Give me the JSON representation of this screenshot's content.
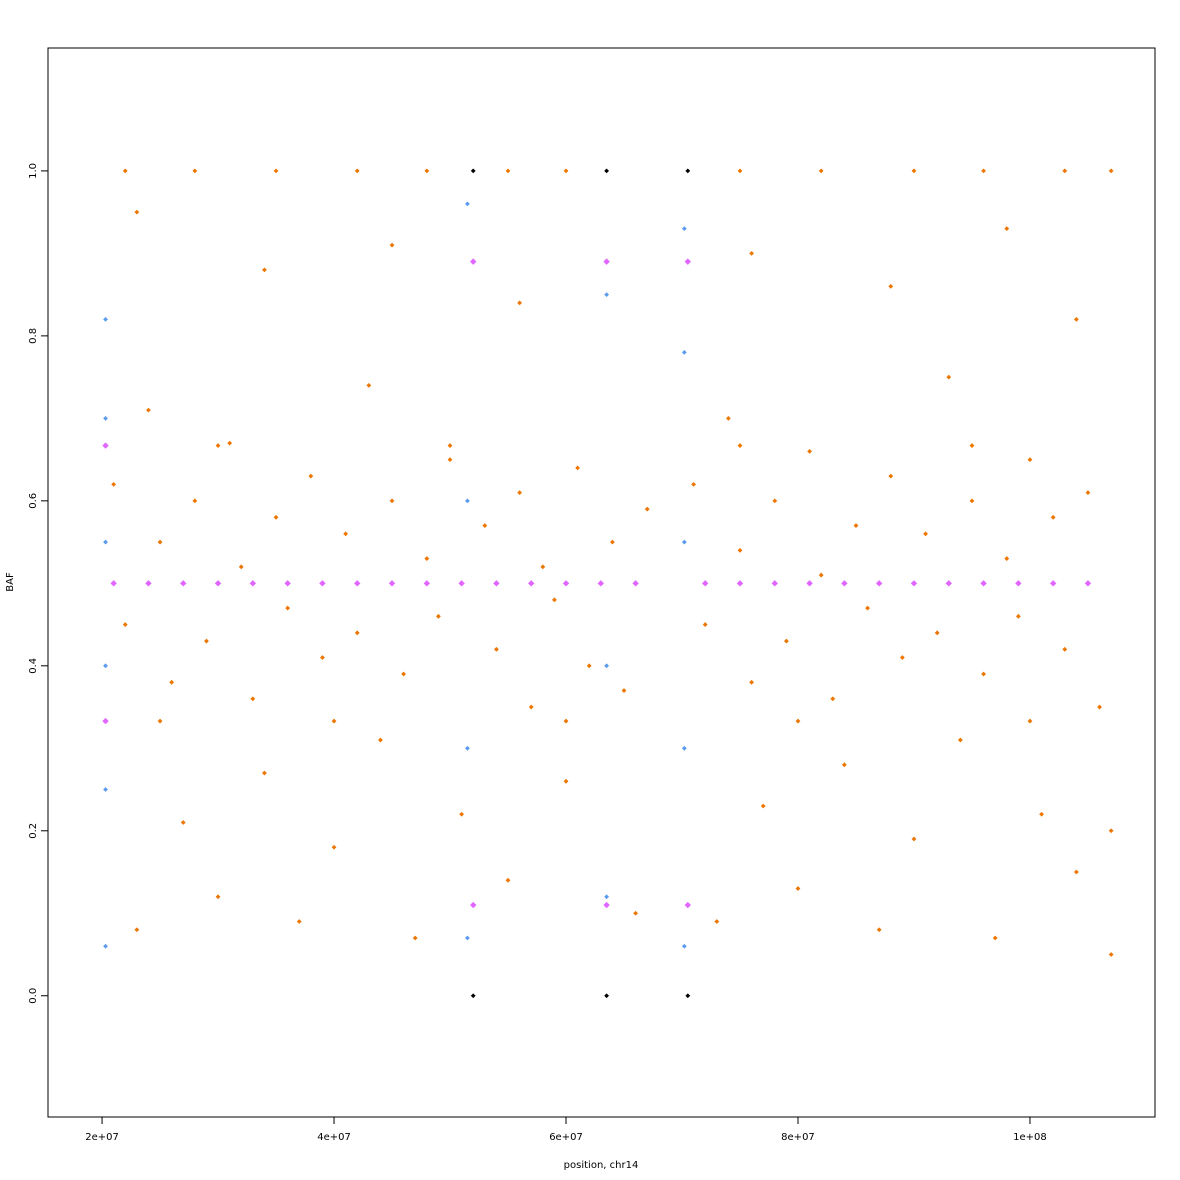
{
  "chart_data": {
    "type": "scatter",
    "xlabel": "position, chr14",
    "ylabel": "BAF",
    "xlim": [
      15340000,
      110780000
    ],
    "ylim": [
      -0.147,
      1.149
    ],
    "xticks": [
      {
        "value": 20000000.0,
        "label": "2e+07"
      },
      {
        "value": 40000000.0,
        "label": "4e+07"
      },
      {
        "value": 60000000.0,
        "label": "6e+07"
      },
      {
        "value": 80000000.0,
        "label": "8e+07"
      },
      {
        "value": 100000000.0,
        "label": "1e+08"
      }
    ],
    "yticks": [
      {
        "value": 0,
        "label": "0.0"
      },
      0.2,
      0.4,
      0.6,
      0.8,
      {
        "value": 1,
        "label": "1.0"
      }
    ],
    "series": [
      {
        "color": "#ee7600",
        "x": [
          21000000.0,
          22000000.0,
          23000000.0,
          24000000.0,
          25000000.0,
          26000000.0,
          27000000.0,
          28000000.0,
          29000000.0,
          30000000.0,
          31000000.0,
          32000000.0,
          33000000.0,
          34000000.0,
          35000000.0,
          36000000.0,
          37000000.0,
          38000000.0,
          39000000.0,
          40000000.0,
          41000000.0,
          42000000.0,
          43000000.0,
          44000000.0,
          45000000.0,
          46000000.0,
          47000000.0,
          48000000.0,
          49000000.0,
          50000000.0,
          51000000.0,
          53000000.0,
          54000000.0,
          55000000.0,
          56000000.0,
          57000000.0,
          58000000.0,
          59000000.0,
          60000000.0,
          61000000.0,
          62000000.0,
          64000000.0,
          65000000.0,
          66000000.0,
          67000000.0,
          71000000.0,
          72000000.0,
          73000000.0,
          74000000.0,
          75000000.0,
          76000000.0,
          77000000.0,
          78000000.0,
          79000000.0,
          80000000.0,
          81000000.0,
          82000000.0,
          83000000.0,
          84000000.0,
          85000000.0,
          86000000.0,
          87000000.0,
          88000000.0,
          89000000.0,
          90000000.0,
          91000000.0,
          92000000.0,
          93000000.0,
          94000000.0,
          95000000.0,
          96000000.0,
          97000000.0,
          98000000.0,
          99000000.0,
          100000000.0,
          101000000.0,
          102000000.0,
          103000000.0,
          104000000.0,
          105000000.0,
          106000000.0,
          107000000.0,
          107000000.0,
          23000000.0,
          34000000.0,
          45000000.0,
          56000000.0,
          76000000.0,
          88000000.0,
          98000000.0,
          104000000.0,
          22000000.0,
          28000000.0,
          35000000.0,
          42000000.0,
          48000000.0,
          55000000.0,
          60000000.0,
          75000000.0,
          82000000.0,
          90000000.0,
          96000000.0,
          103000000.0,
          107000000.0,
          25000000.0,
          40000000.0,
          60000000.0,
          80000000.0,
          100000000.0,
          30000000.0,
          50000000.0,
          75000000.0,
          95000000.0
        ],
        "y": [
          0.62,
          0.45,
          0.08,
          0.71,
          0.55,
          0.38,
          0.21,
          0.6,
          0.43,
          0.12,
          0.67,
          0.52,
          0.36,
          0.27,
          0.58,
          0.47,
          0.09,
          0.63,
          0.41,
          0.18,
          0.56,
          0.44,
          0.74,
          0.31,
          0.6,
          0.39,
          0.07,
          0.53,
          0.46,
          0.65,
          0.22,
          0.57,
          0.42,
          0.14,
          0.61,
          0.35,
          0.52,
          0.48,
          0.26,
          0.64,
          0.4,
          0.55,
          0.37,
          0.1,
          0.59,
          0.62,
          0.45,
          0.09,
          0.7,
          0.54,
          0.38,
          0.23,
          0.6,
          0.43,
          0.13,
          0.66,
          0.51,
          0.36,
          0.28,
          0.57,
          0.47,
          0.08,
          0.63,
          0.41,
          0.19,
          0.56,
          0.44,
          0.75,
          0.31,
          0.6,
          0.39,
          0.07,
          0.53,
          0.46,
          0.65,
          0.22,
          0.58,
          0.42,
          0.15,
          0.61,
          0.35,
          0.2,
          0.05,
          0.95,
          0.88,
          0.91,
          0.84,
          0.9,
          0.86,
          0.93,
          0.82,
          1,
          1,
          1,
          1,
          1,
          1,
          1,
          1,
          1,
          1,
          1,
          1,
          1,
          0.333,
          0.333,
          0.333,
          0.333,
          0.333,
          0.667,
          0.667,
          0.667,
          0.667
        ]
      },
      {
        "color": "#5b9bef",
        "x": [
          20300000.0,
          20300000.0,
          20300000.0,
          20300000.0,
          20300000.0,
          20300000.0,
          51500000.0,
          51500000.0,
          51500000.0,
          51500000.0,
          63500000.0,
          63500000.0,
          63500000.0,
          70200000.0,
          70200000.0,
          70200000.0,
          70200000.0,
          70200000.0
        ],
        "y": [
          0.82,
          0.7,
          0.55,
          0.4,
          0.25,
          0.06,
          0.96,
          0.6,
          0.3,
          0.07,
          0.85,
          0.4,
          0.12,
          0.93,
          0.78,
          0.55,
          0.3,
          0.06
        ]
      },
      {
        "color": "#e066ff",
        "x": [
          21000000.0,
          24000000.0,
          27000000.0,
          30000000.0,
          33000000.0,
          36000000.0,
          39000000.0,
          42000000.0,
          45000000.0,
          48000000.0,
          51000000.0,
          54000000.0,
          57000000.0,
          60000000.0,
          63000000.0,
          66000000.0,
          72000000.0,
          75000000.0,
          78000000.0,
          81000000.0,
          84000000.0,
          87000000.0,
          90000000.0,
          93000000.0,
          96000000.0,
          99000000.0,
          102000000.0,
          105000000.0,
          52000000.0,
          63500000.0,
          70500000.0,
          52000000.0,
          63500000.0,
          70500000.0,
          20300000.0,
          20300000.0
        ],
        "y": [
          0.5,
          0.5,
          0.5,
          0.5,
          0.5,
          0.5,
          0.5,
          0.5,
          0.5,
          0.5,
          0.5,
          0.5,
          0.5,
          0.5,
          0.5,
          0.5,
          0.5,
          0.5,
          0.5,
          0.5,
          0.5,
          0.5,
          0.5,
          0.5,
          0.5,
          0.5,
          0.5,
          0.5,
          0.89,
          0.89,
          0.89,
          0.11,
          0.11,
          0.11,
          0.667,
          0.333
        ]
      },
      {
        "color": "#000000",
        "x": [
          52000000.0,
          63500000.0,
          70500000.0,
          52000000.0,
          63500000.0,
          70500000.0
        ],
        "y": [
          1,
          1,
          1,
          0,
          0,
          0
        ]
      }
    ]
  }
}
